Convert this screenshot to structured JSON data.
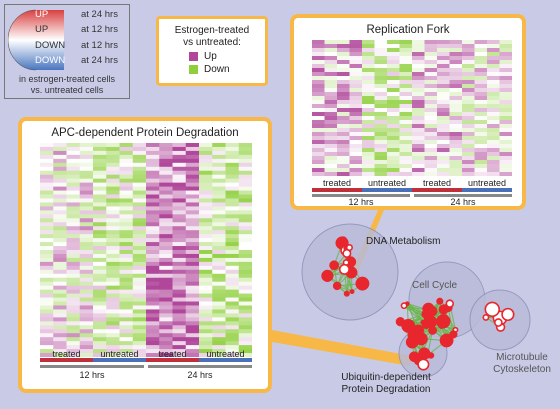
{
  "legend_circle": {
    "labels": [
      {
        "dir": "UP",
        "time": "at 24 hrs"
      },
      {
        "dir": "UP",
        "time": "at 12 hrs"
      },
      {
        "dir": "DOWN",
        "time": "at 12 hrs"
      },
      {
        "dir": "DOWN",
        "time": "at 24 hrs"
      }
    ],
    "footer_line1": "in estrogen-treated cells",
    "footer_line2": "vs. untreated cells",
    "colors": {
      "up": "#d94040",
      "down": "#4a76c0"
    }
  },
  "legend_treatment": {
    "title_line1": "Estrogen-treated",
    "title_line2": "vs untreated:",
    "items": [
      {
        "label": "Up",
        "color": "#b0479a"
      },
      {
        "label": "Down",
        "color": "#8fcf3c"
      }
    ]
  },
  "heatmaps": [
    {
      "title": "APC-dependent Protein Degradation",
      "conditions": [
        "treated",
        "untreated",
        "treated",
        "untreated"
      ],
      "condition_colors": [
        "#c0303a",
        "#4a70b8",
        "#c0303a",
        "#4a70b8"
      ],
      "times": [
        "12 hrs",
        "24 hrs"
      ]
    },
    {
      "title": "Replication Fork",
      "conditions": [
        "treated",
        "untreated",
        "treated",
        "untreated"
      ],
      "condition_colors": [
        "#c0303a",
        "#4a70b8",
        "#c0303a",
        "#4a70b8"
      ],
      "times": [
        "12 hrs",
        "24 hrs"
      ]
    }
  ],
  "network": {
    "clusters": [
      "DNA Metabolism",
      "Cell Cycle",
      "Microtubule Cytoskeleton",
      "Ubiquitin-dependent Protein Degradation"
    ],
    "edge_color": "#6ab84a",
    "node_color": "#e8262d",
    "cluster_fill": "#b9bbd8"
  }
}
